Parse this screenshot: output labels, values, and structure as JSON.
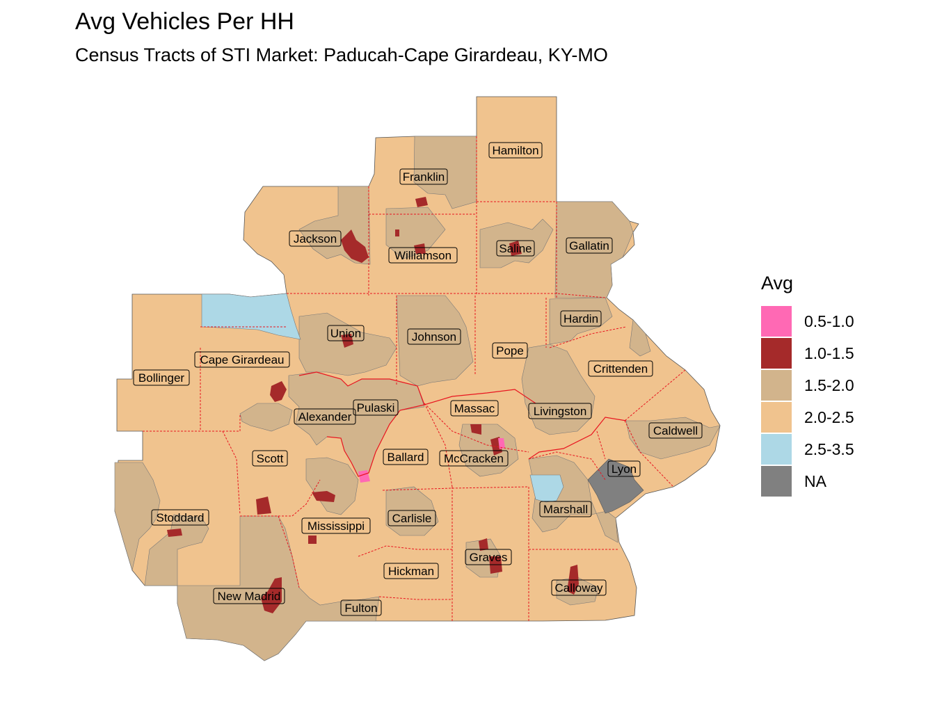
{
  "title": "Avg Vehicles Per HH",
  "subtitle": "Census Tracts of STI Market: Paducah-Cape Girardeau, KY-MO",
  "legend": {
    "title": "Avg",
    "items": [
      {
        "label": "0.5-1.0",
        "color": "#ff69b4"
      },
      {
        "label": "1.0-1.5",
        "color": "#a52a2a"
      },
      {
        "label": "1.5-2.0",
        "color": "#d2b48c"
      },
      {
        "label": "2.0-2.5",
        "color": "#f0c38e"
      },
      {
        "label": "2.5-3.5",
        "color": "#add8e6"
      },
      {
        "label": "NA",
        "color": "#808080"
      }
    ]
  },
  "counties": [
    "Hamilton",
    "Franklin",
    "Jackson",
    "Williamson",
    "Saline",
    "Gallatin",
    "Union",
    "Johnson",
    "Pope",
    "Hardin",
    "Cape Girardeau",
    "Bollinger",
    "Crittenden",
    "Alexander",
    "Pulaski",
    "Massac",
    "Livingston",
    "Caldwell",
    "Scott",
    "Ballard",
    "McCracken",
    "Lyon",
    "Stoddard",
    "Carlisle",
    "Marshall",
    "Mississippi",
    "Graves",
    "Hickman",
    "Calloway",
    "New Madrid",
    "Fulton"
  ]
}
